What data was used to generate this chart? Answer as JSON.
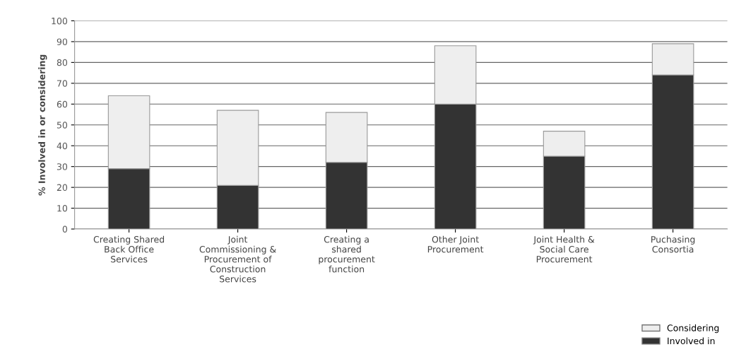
{
  "chart_data": {
    "type": "bar",
    "stacked": true,
    "ylabel": "% Involved in or considering",
    "categories": [
      "Creating Shared\nBack Office\nServices",
      "Joint\nCommissioning &\nProcurement of\nConstruction\nServices",
      "Creating a\nshared\nprocurement\nfunction",
      "Other Joint\nProcurement",
      "Joint Health &\nSocial Care\nProcurement",
      "Puchasing\nConsortia"
    ],
    "series": [
      {
        "name": "Involved in",
        "color": "#333333",
        "values": [
          29,
          21,
          32,
          60,
          35,
          74
        ]
      },
      {
        "name": "Considering",
        "color": "#eeeeee",
        "values": [
          35,
          36,
          24,
          28,
          12,
          15
        ]
      }
    ],
    "ylim": [
      0,
      100
    ],
    "yticks": [
      0,
      10,
      20,
      30,
      40,
      50,
      60,
      70,
      80,
      90,
      100
    ],
    "grid": "y",
    "legend": "bottom right"
  }
}
